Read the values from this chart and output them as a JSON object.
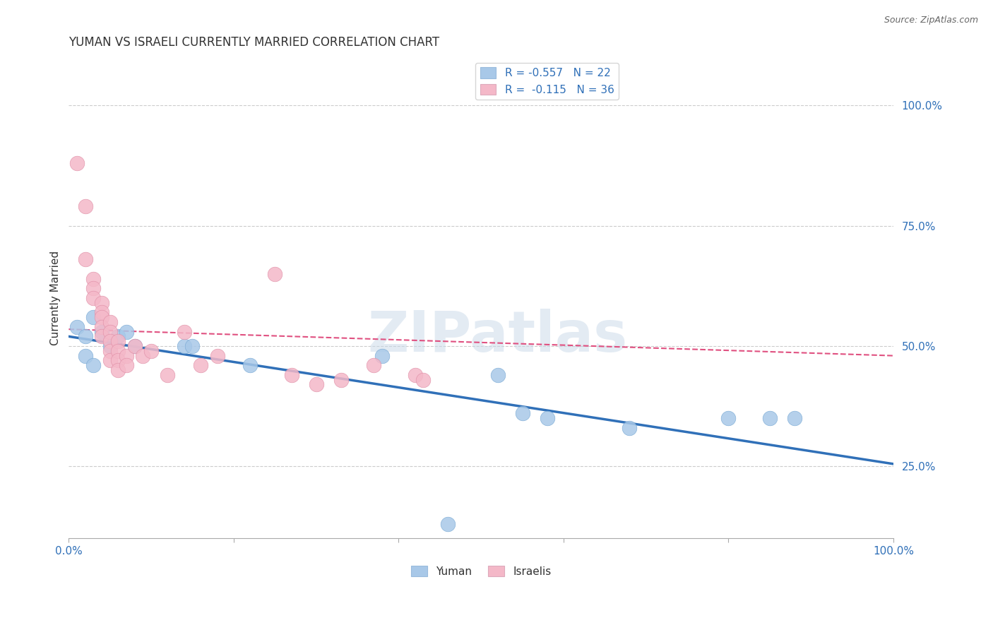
{
  "title": "YUMAN VS ISRAELI CURRENTLY MARRIED CORRELATION CHART",
  "source": "Source: ZipAtlas.com",
  "ylabel": "Currently Married",
  "ytick_labels": [
    "25.0%",
    "50.0%",
    "75.0%",
    "100.0%"
  ],
  "ytick_values": [
    0.25,
    0.5,
    0.75,
    1.0
  ],
  "xlim": [
    0.0,
    1.0
  ],
  "ylim": [
    0.1,
    1.1
  ],
  "plot_ylim": [
    0.1,
    1.1
  ],
  "legend_label1": "R = -0.557   N = 22",
  "legend_label2": "R =  -0.115   N = 36",
  "watermark": "ZIPatlas",
  "blue_color": "#a8c8e8",
  "pink_color": "#f4b8c8",
  "blue_line_color": "#3070b8",
  "pink_line_color": "#e05080",
  "yuman_points": [
    [
      0.01,
      0.54
    ],
    [
      0.02,
      0.52
    ],
    [
      0.03,
      0.56
    ],
    [
      0.04,
      0.53
    ],
    [
      0.05,
      0.5
    ],
    [
      0.06,
      0.52
    ],
    [
      0.07,
      0.53
    ],
    [
      0.08,
      0.5
    ],
    [
      0.14,
      0.5
    ],
    [
      0.15,
      0.5
    ],
    [
      0.02,
      0.48
    ],
    [
      0.22,
      0.46
    ],
    [
      0.38,
      0.48
    ],
    [
      0.52,
      0.44
    ],
    [
      0.55,
      0.36
    ],
    [
      0.58,
      0.35
    ],
    [
      0.03,
      0.46
    ],
    [
      0.68,
      0.33
    ],
    [
      0.8,
      0.35
    ],
    [
      0.85,
      0.35
    ],
    [
      0.88,
      0.35
    ],
    [
      0.46,
      0.13
    ]
  ],
  "israeli_points": [
    [
      0.01,
      0.88
    ],
    [
      0.02,
      0.79
    ],
    [
      0.02,
      0.68
    ],
    [
      0.03,
      0.64
    ],
    [
      0.03,
      0.62
    ],
    [
      0.03,
      0.6
    ],
    [
      0.04,
      0.59
    ],
    [
      0.04,
      0.57
    ],
    [
      0.04,
      0.56
    ],
    [
      0.04,
      0.54
    ],
    [
      0.04,
      0.52
    ],
    [
      0.05,
      0.55
    ],
    [
      0.05,
      0.53
    ],
    [
      0.05,
      0.51
    ],
    [
      0.05,
      0.49
    ],
    [
      0.05,
      0.47
    ],
    [
      0.06,
      0.51
    ],
    [
      0.06,
      0.49
    ],
    [
      0.06,
      0.47
    ],
    [
      0.06,
      0.45
    ],
    [
      0.07,
      0.48
    ],
    [
      0.07,
      0.46
    ],
    [
      0.08,
      0.5
    ],
    [
      0.09,
      0.48
    ],
    [
      0.1,
      0.49
    ],
    [
      0.12,
      0.44
    ],
    [
      0.14,
      0.53
    ],
    [
      0.16,
      0.46
    ],
    [
      0.18,
      0.48
    ],
    [
      0.25,
      0.65
    ],
    [
      0.27,
      0.44
    ],
    [
      0.3,
      0.42
    ],
    [
      0.33,
      0.43
    ],
    [
      0.37,
      0.46
    ],
    [
      0.42,
      0.44
    ],
    [
      0.43,
      0.43
    ]
  ]
}
